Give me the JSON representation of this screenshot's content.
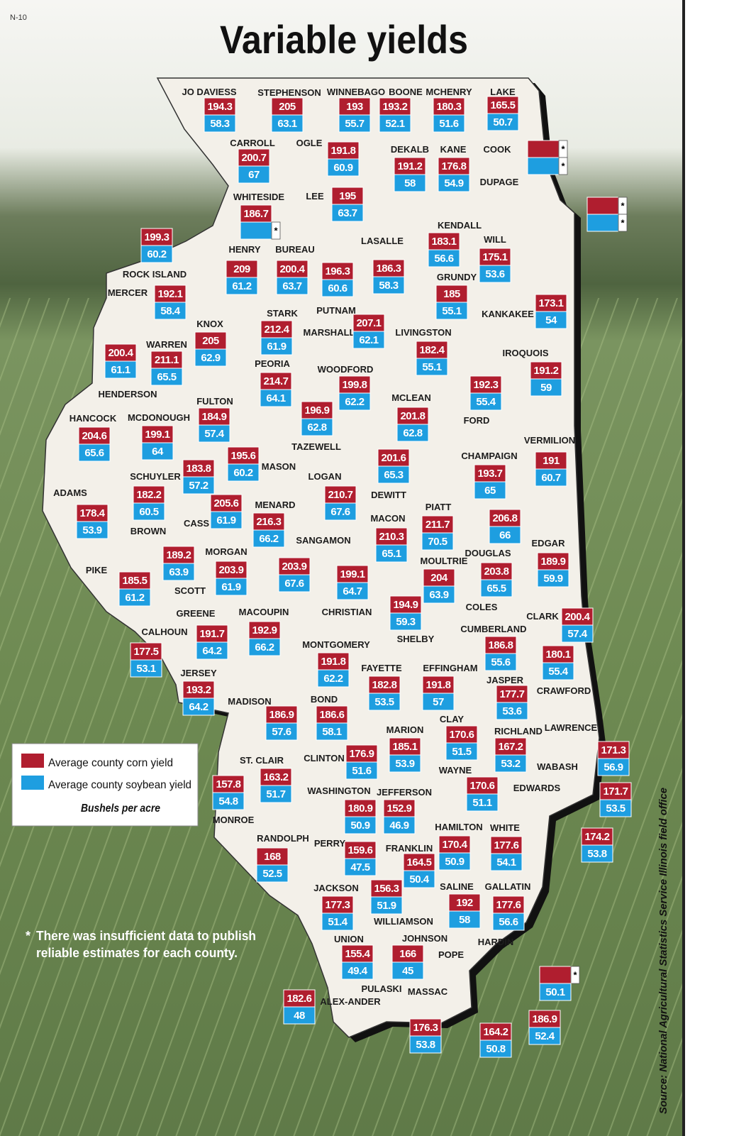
{
  "page_label": "N-10",
  "title": "Variable yields",
  "legend": {
    "corn": "Average county corn yield",
    "soybean": "Average county soybean yield",
    "units": "Bushels per acre"
  },
  "footnote": {
    "mark": "*",
    "lines": [
      "There was insufficient data to publish",
      "reliable estimates for each county."
    ]
  },
  "source": "Source: National Agricultural Statistics Service Illinois field office",
  "counties": [
    {
      "name": "JO DAVIESS",
      "corn": 194.3,
      "soybean": 58.3
    },
    {
      "name": "STEPHENSON",
      "corn": 205,
      "soybean": 63.1
    },
    {
      "name": "WINNEBAGO",
      "corn": 193,
      "soybean": 55.7
    },
    {
      "name": "BOONE",
      "corn": 193.2,
      "soybean": 52.1
    },
    {
      "name": "MCHENRY",
      "corn": 180.3,
      "soybean": 51.6
    },
    {
      "name": "LAKE",
      "corn": 165.5,
      "soybean": 50.7
    },
    {
      "name": "CARROLL",
      "corn": 200.7,
      "soybean": 67
    },
    {
      "name": "OGLE",
      "corn": 191.8,
      "soybean": 60.9
    },
    {
      "name": "DEKALB",
      "corn": 191.2,
      "soybean": 58
    },
    {
      "name": "KANE",
      "corn": 176.8,
      "soybean": 54.9
    },
    {
      "name": "COOK",
      "corn": "*",
      "soybean": "*"
    },
    {
      "name": "DUPAGE",
      "corn": "*",
      "soybean": "*"
    },
    {
      "name": "WHITESIDE",
      "corn": 186.7,
      "soybean": "*"
    },
    {
      "name": "LEE",
      "corn": 195,
      "soybean": 63.7
    },
    {
      "name": "ROCK ISLAND",
      "corn": 199.3,
      "soybean": 60.2
    },
    {
      "name": "HENRY",
      "corn": 209,
      "soybean": 61.2
    },
    {
      "name": "BUREAU",
      "corn": 200.4,
      "soybean": 63.7
    },
    {
      "name": "LASALLE",
      "corn": 186.3,
      "soybean": 58.3
    },
    {
      "name": "KENDALL",
      "corn": 183.1,
      "soybean": 56.6
    },
    {
      "name": "WILL",
      "corn": 175.1,
      "soybean": 53.6
    },
    {
      "name": "MERCER",
      "corn": 192.1,
      "soybean": 58.4
    },
    {
      "name": "PUTNAM",
      "corn": 196.3,
      "soybean": 60.6
    },
    {
      "name": "GRUNDY",
      "corn": 185,
      "soybean": 55.1
    },
    {
      "name": "KANKAKEE",
      "corn": 173.1,
      "soybean": 54
    },
    {
      "name": "STARK",
      "corn": 212.4,
      "soybean": 61.9
    },
    {
      "name": "MARSHALL",
      "corn": 207.1,
      "soybean": 62.1
    },
    {
      "name": "KNOX",
      "corn": 205,
      "soybean": 62.9
    },
    {
      "name": "LIVINGSTON",
      "corn": 182.4,
      "soybean": 55.1
    },
    {
      "name": "WARREN",
      "corn": 211.1,
      "soybean": 65.5
    },
    {
      "name": "HENDERSON",
      "corn": 200.4,
      "soybean": 61.1
    },
    {
      "name": "IROQUOIS",
      "corn": 191.2,
      "soybean": 59
    },
    {
      "name": "PEORIA",
      "corn": 214.7,
      "soybean": 64.1
    },
    {
      "name": "WOODFORD",
      "corn": 199.8,
      "soybean": 62.2
    },
    {
      "name": "MCLEAN",
      "corn": 201.8,
      "soybean": 62.8
    },
    {
      "name": "FULTON",
      "corn": 184.9,
      "soybean": 57.4
    },
    {
      "name": "HANCOCK",
      "corn": 204.6,
      "soybean": 65.6
    },
    {
      "name": "MCDONOUGH",
      "corn": 199.1,
      "soybean": 64
    },
    {
      "name": "FORD",
      "corn": 192.3,
      "soybean": 55.4
    },
    {
      "name": "TAZEWELL",
      "corn": 196.9,
      "soybean": 62.8
    },
    {
      "name": "VERMILION",
      "corn": 191,
      "soybean": 60.7
    },
    {
      "name": "SCHUYLER",
      "corn": 183.8,
      "soybean": 57.2
    },
    {
      "name": "MASON",
      "corn": 195.6,
      "soybean": 60.2
    },
    {
      "name": "LOGAN",
      "corn": 210.7,
      "soybean": 67.6
    },
    {
      "name": "DEWITT",
      "corn": 201.6,
      "soybean": 65.3
    },
    {
      "name": "CHAMPAIGN",
      "corn": 193.7,
      "soybean": 65
    },
    {
      "name": "ADAMS",
      "corn": 178.4,
      "soybean": 53.9
    },
    {
      "name": "BROWN",
      "corn": 182.2,
      "soybean": 60.5
    },
    {
      "name": "MENARD",
      "corn": 216.3,
      "soybean": 66.2
    },
    {
      "name": "CASS",
      "corn": 205.6,
      "soybean": 61.9
    },
    {
      "name": "PIATT",
      "corn": 211.7,
      "soybean": 70.5
    },
    {
      "name": "MACON",
      "corn": 210.3,
      "soybean": 65.1
    },
    {
      "name": "SANGAMON",
      "corn": 203.9,
      "soybean": 67.6
    },
    {
      "name": "EDGAR",
      "corn": 189.9,
      "soybean": 59.9
    },
    {
      "name": "DOUGLAS",
      "corn": 206.8,
      "soybean": 66
    },
    {
      "name": "MORGAN",
      "corn": 203.9,
      "soybean": 61.9
    },
    {
      "name": "SCOTT",
      "corn": 189.2,
      "soybean": 63.9
    },
    {
      "name": "PIKE",
      "corn": 185.5,
      "soybean": 61.2
    },
    {
      "name": "MOULTRIE",
      "corn": 204,
      "soybean": 63.9
    },
    {
      "name": "CHRISTIAN",
      "corn": 199.1,
      "soybean": 64.7
    },
    {
      "name": "COLES",
      "corn": 203.8,
      "soybean": 65.5
    },
    {
      "name": "SHELBY",
      "corn": 194.9,
      "soybean": 59.3
    },
    {
      "name": "CLARK",
      "corn": 200.4,
      "soybean": 57.4
    },
    {
      "name": "GREENE",
      "corn": 191.7,
      "soybean": 64.2
    },
    {
      "name": "MACOUPIN",
      "corn": 192.9,
      "soybean": 66.2
    },
    {
      "name": "CALHOUN",
      "corn": 177.5,
      "soybean": 53.1
    },
    {
      "name": "CUMBERLAND",
      "corn": 186.8,
      "soybean": 55.6
    },
    {
      "name": "MONTGOMERY",
      "corn": 191.8,
      "soybean": 62.2
    },
    {
      "name": "JERSEY",
      "corn": 193.2,
      "soybean": 64.2
    },
    {
      "name": "FAYETTE",
      "corn": 182.8,
      "soybean": 53.5
    },
    {
      "name": "EFFINGHAM",
      "corn": 191.8,
      "soybean": 57
    },
    {
      "name": "JASPER",
      "corn": 177.7,
      "soybean": 53.6
    },
    {
      "name": "CRAWFORD",
      "corn": 180.1,
      "soybean": 55.4
    },
    {
      "name": "MADISON",
      "corn": 186.9,
      "soybean": 57.6
    },
    {
      "name": "BOND",
      "corn": 186.6,
      "soybean": 58.1
    },
    {
      "name": "CLAY",
      "corn": 170.6,
      "soybean": 51.5
    },
    {
      "name": "MARION",
      "corn": 185.1,
      "soybean": 53.9
    },
    {
      "name": "RICHLAND",
      "corn": 167.2,
      "soybean": 53.2
    },
    {
      "name": "LAWRENCE",
      "corn": 171.3,
      "soybean": 56.9
    },
    {
      "name": "CLINTON",
      "corn": 176.9,
      "soybean": 51.6
    },
    {
      "name": "ST. CLAIR",
      "corn": 163.2,
      "soybean": 51.7
    },
    {
      "name": "WABASH",
      "corn": 171.7,
      "soybean": 53.5
    },
    {
      "name": "WAYNE",
      "corn": 170.6,
      "soybean": 51.1
    },
    {
      "name": "MONROE",
      "corn": 157.8,
      "soybean": 54.8
    },
    {
      "name": "WASHINGTON",
      "corn": 180.9,
      "soybean": 50.9
    },
    {
      "name": "JEFFERSON",
      "corn": 152.9,
      "soybean": 46.9
    },
    {
      "name": "EDWARDS",
      "corn": 174.2,
      "soybean": 53.8
    },
    {
      "name": "HAMILTON",
      "corn": 170.4,
      "soybean": 50.9
    },
    {
      "name": "WHITE",
      "corn": 177.6,
      "soybean": 54.1
    },
    {
      "name": "RANDOLPH",
      "corn": 168,
      "soybean": 52.5
    },
    {
      "name": "PERRY",
      "corn": 159.6,
      "soybean": 47.5
    },
    {
      "name": "FRANKLIN",
      "corn": 164.5,
      "soybean": 50.4
    },
    {
      "name": "JACKSON",
      "corn": 177.3,
      "soybean": 51.4
    },
    {
      "name": "SALINE",
      "corn": 192,
      "soybean": 58
    },
    {
      "name": "GALLATIN",
      "corn": 177.6,
      "soybean": 56.6
    },
    {
      "name": "WILLIAMSON",
      "corn": 156.3,
      "soybean": 51.9
    },
    {
      "name": "UNION",
      "corn": 155.4,
      "soybean": 49.4
    },
    {
      "name": "JOHNSON",
      "corn": 166,
      "soybean": 45
    },
    {
      "name": "HARDIN",
      "corn": "*",
      "soybean": 50.1
    },
    {
      "name": "POPE",
      "corn": 186.9,
      "soybean": 52.4
    },
    {
      "name": "ALEX-ANDER",
      "corn": 182.6,
      "soybean": 48
    },
    {
      "name": "PULASKI",
      "corn": 176.3,
      "soybean": 53.8
    },
    {
      "name": "MASSAC",
      "corn": 164.2,
      "soybean": 50.8
    }
  ]
}
